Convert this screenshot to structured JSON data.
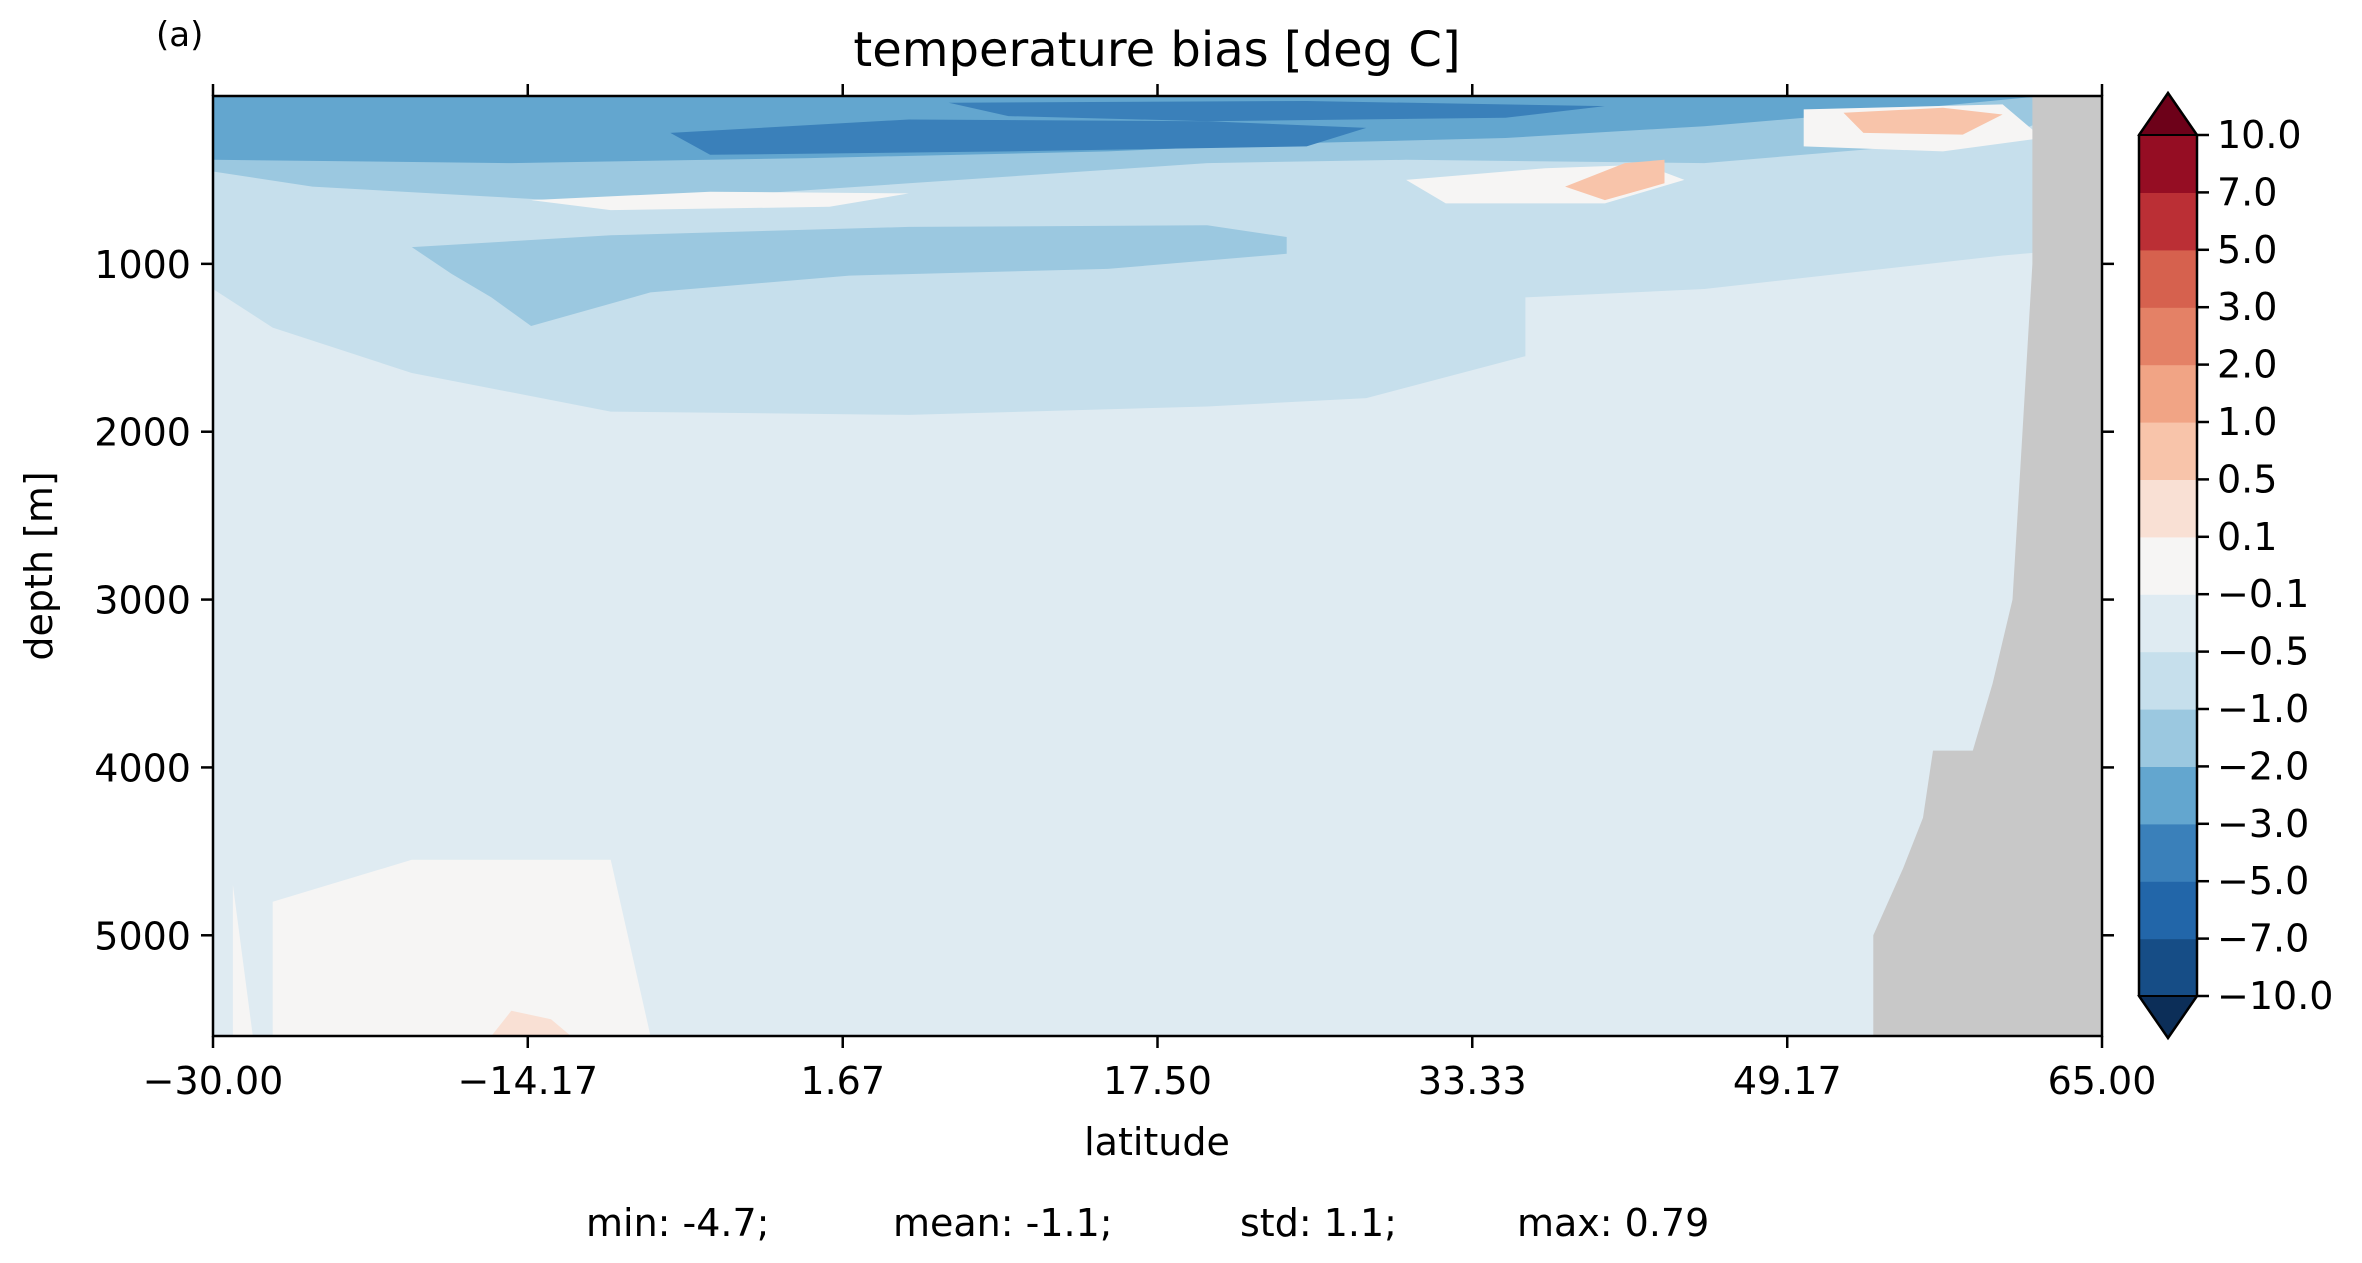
{
  "figure": {
    "panel_label": "(a)",
    "stats": {
      "min": "min: -4.7;",
      "mean": "mean: -1.1;",
      "std": "std: 1.1;",
      "max": "max: 0.79"
    }
  },
  "chart_data": {
    "type": "heatmap",
    "subtype": "filled-contour depth-latitude section",
    "title": "temperature bias [deg C]",
    "xlabel": "latitude",
    "ylabel": "depth [m]",
    "xlim": [
      -30.0,
      65.0
    ],
    "ylim": [
      5600,
      0
    ],
    "y_inverted": true,
    "x_ticks": [
      -30.0,
      -14.17,
      1.67,
      17.5,
      33.33,
      49.17,
      65.0
    ],
    "x_tick_labels": [
      "−30.00",
      "−14.17",
      "1.67",
      "17.50",
      "33.33",
      "49.17",
      "65.00"
    ],
    "y_ticks": [
      1000,
      2000,
      3000,
      4000,
      5000
    ],
    "y_tick_labels": [
      "1000",
      "2000",
      "3000",
      "4000",
      "5000"
    ],
    "colorbar": {
      "levels": [
        -10.0,
        -7.0,
        -5.0,
        -3.0,
        -2.0,
        -1.0,
        -0.5,
        -0.1,
        0.1,
        0.5,
        1.0,
        2.0,
        3.0,
        5.0,
        7.0,
        10.0
      ],
      "tick_labels": [
        "−10.0",
        "−7.0",
        "−5.0",
        "−3.0",
        "−2.0",
        "−1.0",
        "−0.5",
        "−0.1",
        "0.1",
        "0.5",
        "1.0",
        "2.0",
        "3.0",
        "5.0",
        "7.0",
        "10.0"
      ],
      "colors": [
        "#164d86",
        "#2266a9",
        "#3a80ba",
        "#63a6cf",
        "#9bc8e0",
        "#c6dfec",
        "#dfebf2",
        "#f6f5f4",
        "#f9e0d4",
        "#f8c4aa",
        "#f1a485",
        "#e48166",
        "#d6614e",
        "#bb2f35",
        "#950d23"
      ],
      "extend_colors": {
        "below": "#0c2e58",
        "above": "#6d0119"
      },
      "extend": "both",
      "location": "right"
    },
    "approx_regions": [
      {
        "description": "surface band 0-350 m",
        "lat_range": [
          -30,
          60
        ],
        "value_range": [
          -3.0,
          -2.0
        ]
      },
      {
        "description": "strong cold core near 200 m",
        "lat_range": [
          -7,
          28
        ],
        "value_range": [
          -5.0,
          -3.0
        ]
      },
      {
        "description": "mid-depth cold lens 900-1500 m",
        "lat_range": [
          -14,
          22
        ],
        "value_range": [
          -2.0,
          -1.0
        ]
      },
      {
        "description": "deep ocean interior",
        "lat_range": [
          -30,
          54
        ],
        "value_range": [
          -0.5,
          -0.1
        ]
      },
      {
        "description": "warm patch near 500 m",
        "lat_range": [
          37,
          42
        ],
        "value_range": [
          0.5,
          1.0
        ]
      },
      {
        "description": "warm patch near 150 m",
        "lat_range": [
          52,
          58
        ],
        "value_range": [
          0.5,
          1.0
        ]
      },
      {
        "description": "near-zero deep patch",
        "lat_range": [
          -27,
          -8
        ],
        "value_range": [
          -0.1,
          0.1
        ]
      }
    ],
    "land_mask_color": "#c8c8c8",
    "grid": false
  }
}
